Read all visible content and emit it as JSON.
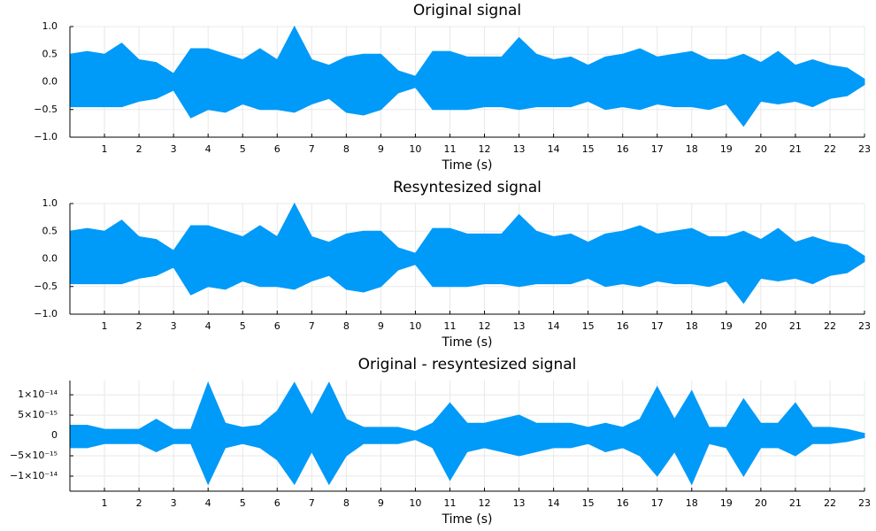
{
  "chart_data": [
    {
      "type": "band",
      "title": "Original signal",
      "xlabel": "Time (s)",
      "color": "#009af9",
      "grid": true,
      "xlim": [
        0,
        23
      ],
      "xticks": [
        1,
        2,
        3,
        4,
        5,
        6,
        7,
        8,
        9,
        10,
        11,
        12,
        13,
        14,
        15,
        16,
        17,
        18,
        19,
        20,
        21,
        22,
        23
      ],
      "ylim": [
        -1,
        1
      ],
      "yticks": [
        {
          "value": -1,
          "label": "−1.0"
        },
        {
          "value": -0.5,
          "label": "−0.5"
        },
        {
          "value": 0,
          "label": "0.0"
        },
        {
          "value": 0.5,
          "label": "0.5"
        },
        {
          "value": 1,
          "label": "1.0"
        }
      ],
      "x": [
        0,
        0.5,
        1,
        1.5,
        2,
        2.5,
        3,
        3.5,
        4,
        4.5,
        5,
        5.5,
        6,
        6.5,
        7,
        7.5,
        8,
        8.5,
        9,
        9.5,
        10,
        10.5,
        11,
        11.5,
        12,
        12.5,
        13,
        13.5,
        14,
        14.5,
        15,
        15.5,
        16,
        16.5,
        17,
        17.5,
        18,
        18.5,
        19,
        19.5,
        20,
        20.5,
        21,
        21.5,
        22,
        22.5,
        23
      ],
      "high": [
        0.5,
        0.55,
        0.5,
        0.7,
        0.4,
        0.35,
        0.15,
        0.6,
        0.6,
        0.5,
        0.4,
        0.6,
        0.4,
        1.0,
        0.4,
        0.3,
        0.45,
        0.5,
        0.5,
        0.2,
        0.1,
        0.55,
        0.55,
        0.45,
        0.45,
        0.45,
        0.8,
        0.5,
        0.4,
        0.45,
        0.3,
        0.45,
        0.5,
        0.6,
        0.45,
        0.5,
        0.55,
        0.4,
        0.4,
        0.5,
        0.35,
        0.55,
        0.3,
        0.4,
        0.3,
        0.25,
        0.05
      ],
      "low": [
        -0.45,
        -0.45,
        -0.45,
        -0.45,
        -0.35,
        -0.3,
        -0.15,
        -0.65,
        -0.5,
        -0.55,
        -0.4,
        -0.5,
        -0.5,
        -0.55,
        -0.4,
        -0.3,
        -0.55,
        -0.6,
        -0.5,
        -0.2,
        -0.1,
        -0.5,
        -0.5,
        -0.5,
        -0.45,
        -0.45,
        -0.5,
        -0.45,
        -0.45,
        -0.45,
        -0.35,
        -0.5,
        -0.45,
        -0.5,
        -0.4,
        -0.45,
        -0.45,
        -0.5,
        -0.4,
        -0.8,
        -0.35,
        -0.4,
        -0.35,
        -0.45,
        -0.3,
        -0.25,
        -0.05
      ]
    },
    {
      "type": "band",
      "title": "Resyntesized signal",
      "xlabel": "Time (s)",
      "color": "#009af9",
      "grid": true,
      "xlim": [
        0,
        23
      ],
      "xticks": [
        1,
        2,
        3,
        4,
        5,
        6,
        7,
        8,
        9,
        10,
        11,
        12,
        13,
        14,
        15,
        16,
        17,
        18,
        19,
        20,
        21,
        22,
        23
      ],
      "ylim": [
        -1,
        1
      ],
      "yticks": [
        {
          "value": -1,
          "label": "−1.0"
        },
        {
          "value": -0.5,
          "label": "−0.5"
        },
        {
          "value": 0,
          "label": "0.0"
        },
        {
          "value": 0.5,
          "label": "0.5"
        },
        {
          "value": 1,
          "label": "1.0"
        }
      ],
      "x": [
        0,
        0.5,
        1,
        1.5,
        2,
        2.5,
        3,
        3.5,
        4,
        4.5,
        5,
        5.5,
        6,
        6.5,
        7,
        7.5,
        8,
        8.5,
        9,
        9.5,
        10,
        10.5,
        11,
        11.5,
        12,
        12.5,
        13,
        13.5,
        14,
        14.5,
        15,
        15.5,
        16,
        16.5,
        17,
        17.5,
        18,
        18.5,
        19,
        19.5,
        20,
        20.5,
        21,
        21.5,
        22,
        22.5,
        23
      ],
      "high": [
        0.5,
        0.55,
        0.5,
        0.7,
        0.4,
        0.35,
        0.15,
        0.6,
        0.6,
        0.5,
        0.4,
        0.6,
        0.4,
        1.0,
        0.4,
        0.3,
        0.45,
        0.5,
        0.5,
        0.2,
        0.1,
        0.55,
        0.55,
        0.45,
        0.45,
        0.45,
        0.8,
        0.5,
        0.4,
        0.45,
        0.3,
        0.45,
        0.5,
        0.6,
        0.45,
        0.5,
        0.55,
        0.4,
        0.4,
        0.5,
        0.35,
        0.55,
        0.3,
        0.4,
        0.3,
        0.25,
        0.05
      ],
      "low": [
        -0.45,
        -0.45,
        -0.45,
        -0.45,
        -0.35,
        -0.3,
        -0.15,
        -0.65,
        -0.5,
        -0.55,
        -0.4,
        -0.5,
        -0.5,
        -0.55,
        -0.4,
        -0.3,
        -0.55,
        -0.6,
        -0.5,
        -0.2,
        -0.1,
        -0.5,
        -0.5,
        -0.5,
        -0.45,
        -0.45,
        -0.5,
        -0.45,
        -0.45,
        -0.45,
        -0.35,
        -0.5,
        -0.45,
        -0.5,
        -0.4,
        -0.45,
        -0.45,
        -0.5,
        -0.4,
        -0.8,
        -0.35,
        -0.4,
        -0.35,
        -0.45,
        -0.3,
        -0.25,
        -0.05
      ]
    },
    {
      "type": "band",
      "title": "Original - resyntesized signal",
      "xlabel": "Time (s)",
      "color": "#009af9",
      "grid": true,
      "xlim": [
        0,
        23
      ],
      "xticks": [
        1,
        2,
        3,
        4,
        5,
        6,
        7,
        8,
        9,
        10,
        11,
        12,
        13,
        14,
        15,
        16,
        17,
        18,
        19,
        20,
        21,
        22,
        23
      ],
      "ylim": [
        -1.37e-14,
        1.35e-14
      ],
      "yticks": [
        {
          "value": -1e-14,
          "label": "−1×10⁻¹⁴"
        },
        {
          "value": -5e-15,
          "label": "−5×10⁻¹⁵"
        },
        0,
        {
          "value": 5e-15,
          "label": "5×10⁻¹⁵"
        },
        {
          "value": 1e-14,
          "label": "1×10⁻¹⁴"
        }
      ],
      "x": [
        0,
        0.5,
        1,
        1.5,
        2,
        2.5,
        3,
        3.5,
        4,
        4.5,
        5,
        5.5,
        6,
        6.5,
        7,
        7.5,
        8,
        8.5,
        9,
        9.5,
        10,
        10.5,
        11,
        11.5,
        12,
        12.5,
        13,
        13.5,
        14,
        14.5,
        15,
        15.5,
        16,
        16.5,
        17,
        17.5,
        18,
        18.5,
        19,
        19.5,
        20,
        20.5,
        21,
        21.5,
        22,
        22.5,
        23
      ],
      "high": [
        2.5e-15,
        2.5e-15,
        1.5e-15,
        1.5e-15,
        1.5e-15,
        4e-15,
        1.5e-15,
        1.5e-15,
        1.3e-14,
        3e-15,
        2e-15,
        2.5e-15,
        6e-15,
        1.3e-14,
        5e-15,
        1.3e-14,
        4e-15,
        2e-15,
        2e-15,
        2e-15,
        1e-15,
        3e-15,
        8e-15,
        3e-15,
        3e-15,
        4e-15,
        5e-15,
        3e-15,
        3e-15,
        3e-15,
        2e-15,
        3e-15,
        2e-15,
        4e-15,
        1.2e-14,
        4e-15,
        1.1e-14,
        2e-15,
        2e-15,
        9e-15,
        3e-15,
        3e-15,
        8e-15,
        2e-15,
        2e-15,
        1.5e-15,
        5e-16
      ],
      "low": [
        -3e-15,
        -3e-15,
        -2e-15,
        -2e-15,
        -2e-15,
        -4e-15,
        -2e-15,
        -2e-15,
        -1.2e-14,
        -3e-15,
        -2e-15,
        -3e-15,
        -6e-15,
        -1.2e-14,
        -4e-15,
        -1.2e-14,
        -5e-15,
        -2e-15,
        -2e-15,
        -2e-15,
        -1e-15,
        -3e-15,
        -1.1e-14,
        -4e-15,
        -3e-15,
        -4e-15,
        -5e-15,
        -4e-15,
        -3e-15,
        -3e-15,
        -2e-15,
        -4e-15,
        -3e-15,
        -5e-15,
        -1e-14,
        -4e-15,
        -1.2e-14,
        -2e-15,
        -3e-15,
        -1e-14,
        -3e-15,
        -3e-15,
        -5e-15,
        -2e-15,
        -2e-15,
        -1.5e-15,
        -5e-16
      ]
    }
  ]
}
